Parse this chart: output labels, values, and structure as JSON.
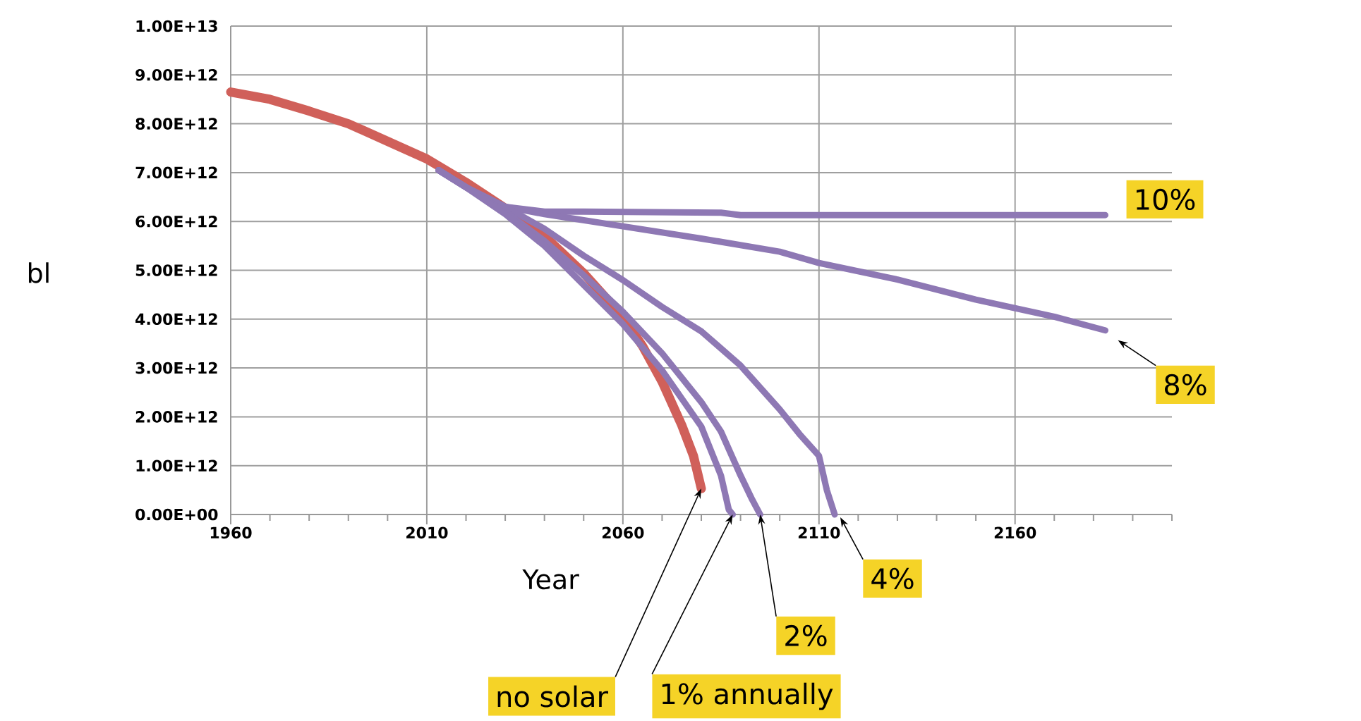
{
  "chart_data": {
    "type": "line",
    "xlabel": "Year",
    "ylabel": "bl",
    "xlim": [
      1960,
      2200
    ],
    "ylim": [
      0,
      10000000000000.0
    ],
    "xticks": [
      1960,
      {
        "value": 1970,
        "label": null
      },
      {
        "value": 1980,
        "label": null
      },
      {
        "value": 1990,
        "label": null
      },
      {
        "value": 2000,
        "label": null
      },
      2010,
      {
        "value": 2020,
        "label": null
      },
      {
        "value": 2030,
        "label": null
      },
      {
        "value": 2040,
        "label": null
      },
      {
        "value": 2050,
        "label": null
      },
      2060,
      {
        "value": 2070,
        "label": null
      },
      {
        "value": 2080,
        "label": null
      },
      {
        "value": 2090,
        "label": null
      },
      {
        "value": 2100,
        "label": null
      },
      2110,
      {
        "value": 2120,
        "label": null
      },
      {
        "value": 2130,
        "label": null
      },
      {
        "value": 2140,
        "label": null
      },
      {
        "value": 2150,
        "label": null
      },
      2160,
      {
        "value": 2170,
        "label": null
      },
      {
        "value": 2180,
        "label": null
      },
      {
        "value": 2190,
        "label": null
      },
      {
        "value": 2200,
        "label": null
      }
    ],
    "yticks": [
      {
        "value": 0,
        "label": "0.00E+00"
      },
      {
        "value": 1000000000000.0,
        "label": "1.00E+12"
      },
      {
        "value": 2000000000000.0,
        "label": "2.00E+12"
      },
      {
        "value": 3000000000000.0,
        "label": "3.00E+12"
      },
      {
        "value": 4000000000000.0,
        "label": "4.00E+12"
      },
      {
        "value": 5000000000000.0,
        "label": "5.00E+12"
      },
      {
        "value": 6000000000000.0,
        "label": "6.00E+12"
      },
      {
        "value": 7000000000000.0,
        "label": "7.00E+12"
      },
      {
        "value": 8000000000000.0,
        "label": "8.00E+12"
      },
      {
        "value": 9000000000000.0,
        "label": "9.00E+12"
      },
      {
        "value": 10000000000000.0,
        "label": "1.00E+13"
      }
    ],
    "grid": true,
    "series": [
      {
        "color": "#d0605a",
        "x": [
          1960,
          1970,
          1980,
          1990,
          2000,
          2010,
          2020,
          2030,
          2040,
          2050,
          2060,
          2065,
          2070,
          2075,
          2078,
          2080
        ],
        "values": [
          8650000000000.0,
          8500000000000.0,
          8260000000000.0,
          8000000000000.0,
          7640000000000.0,
          7280000000000.0,
          6800000000000.0,
          6270000000000.0,
          5700000000000.0,
          4940000000000.0,
          4050000000000.0,
          3450000000000.0,
          2720000000000.0,
          1830000000000.0,
          1200000000000.0,
          530000000000.0
        ]
      },
      {
        "color": "#8e78b4",
        "x": [
          2013,
          2020,
          2030,
          2040,
          2050,
          2085,
          2090,
          2183
        ],
        "values": [
          7050000000000.0,
          6700000000000.0,
          6300000000000.0,
          6200000000000.0,
          6200000000000.0,
          6180000000000.0,
          6130000000000.0,
          6130000000000.0
        ]
      },
      {
        "color": "#8e78b4",
        "x": [
          2013,
          2020,
          2030,
          2040,
          2060,
          2080,
          2100,
          2110,
          2130,
          2150,
          2170,
          2183
        ],
        "values": [
          7050000000000.0,
          6700000000000.0,
          6300000000000.0,
          6150000000000.0,
          5900000000000.0,
          5650000000000.0,
          5380000000000.0,
          5150000000000.0,
          4810000000000.0,
          4400000000000.0,
          4050000000000.0,
          3770000000000.0
        ]
      },
      {
        "color": "#8e78b4",
        "x": [
          2013,
          2020,
          2030,
          2040,
          2050,
          2060,
          2070,
          2080,
          2090,
          2100,
          2105,
          2110,
          2112,
          2114
        ],
        "values": [
          7050000000000.0,
          6700000000000.0,
          6300000000000.0,
          5850000000000.0,
          5300000000000.0,
          4800000000000.0,
          4250000000000.0,
          3750000000000.0,
          3050000000000.0,
          2150000000000.0,
          1650000000000.0,
          1200000000000.0,
          500000000000.0,
          0
        ]
      },
      {
        "color": "#8e78b4",
        "x": [
          2013,
          2020,
          2030,
          2040,
          2050,
          2060,
          2070,
          2080,
          2085,
          2090,
          2093,
          2095
        ],
        "values": [
          7050000000000.0,
          6700000000000.0,
          6200000000000.0,
          5600000000000.0,
          4900000000000.0,
          4150000000000.0,
          3300000000000.0,
          2300000000000.0,
          1700000000000.0,
          800000000000.0,
          300000000000.0,
          0
        ]
      },
      {
        "color": "#8e78b4",
        "x": [
          2013,
          2020,
          2030,
          2040,
          2050,
          2060,
          2070,
          2080,
          2085,
          2087,
          2088
        ],
        "values": [
          7050000000000.0,
          6700000000000.0,
          6150000000000.0,
          5500000000000.0,
          4700000000000.0,
          3900000000000.0,
          2950000000000.0,
          1800000000000.0,
          800000000000.0,
          100000000000.0,
          0
        ]
      }
    ],
    "annotations": [
      {
        "text": "10%",
        "x": 2183,
        "y": 6130000000000.0
      },
      {
        "text": "8%",
        "x": 2183,
        "y": 3770000000000.0
      },
      {
        "text": "4%",
        "x": 2114,
        "y": 0
      },
      {
        "text": "2%",
        "x": 2095,
        "y": 0
      },
      {
        "text": "1% annually",
        "x": 2088,
        "y": 0
      },
      {
        "text": "no solar",
        "x": 2080,
        "y": 530000000000.0
      }
    ]
  }
}
